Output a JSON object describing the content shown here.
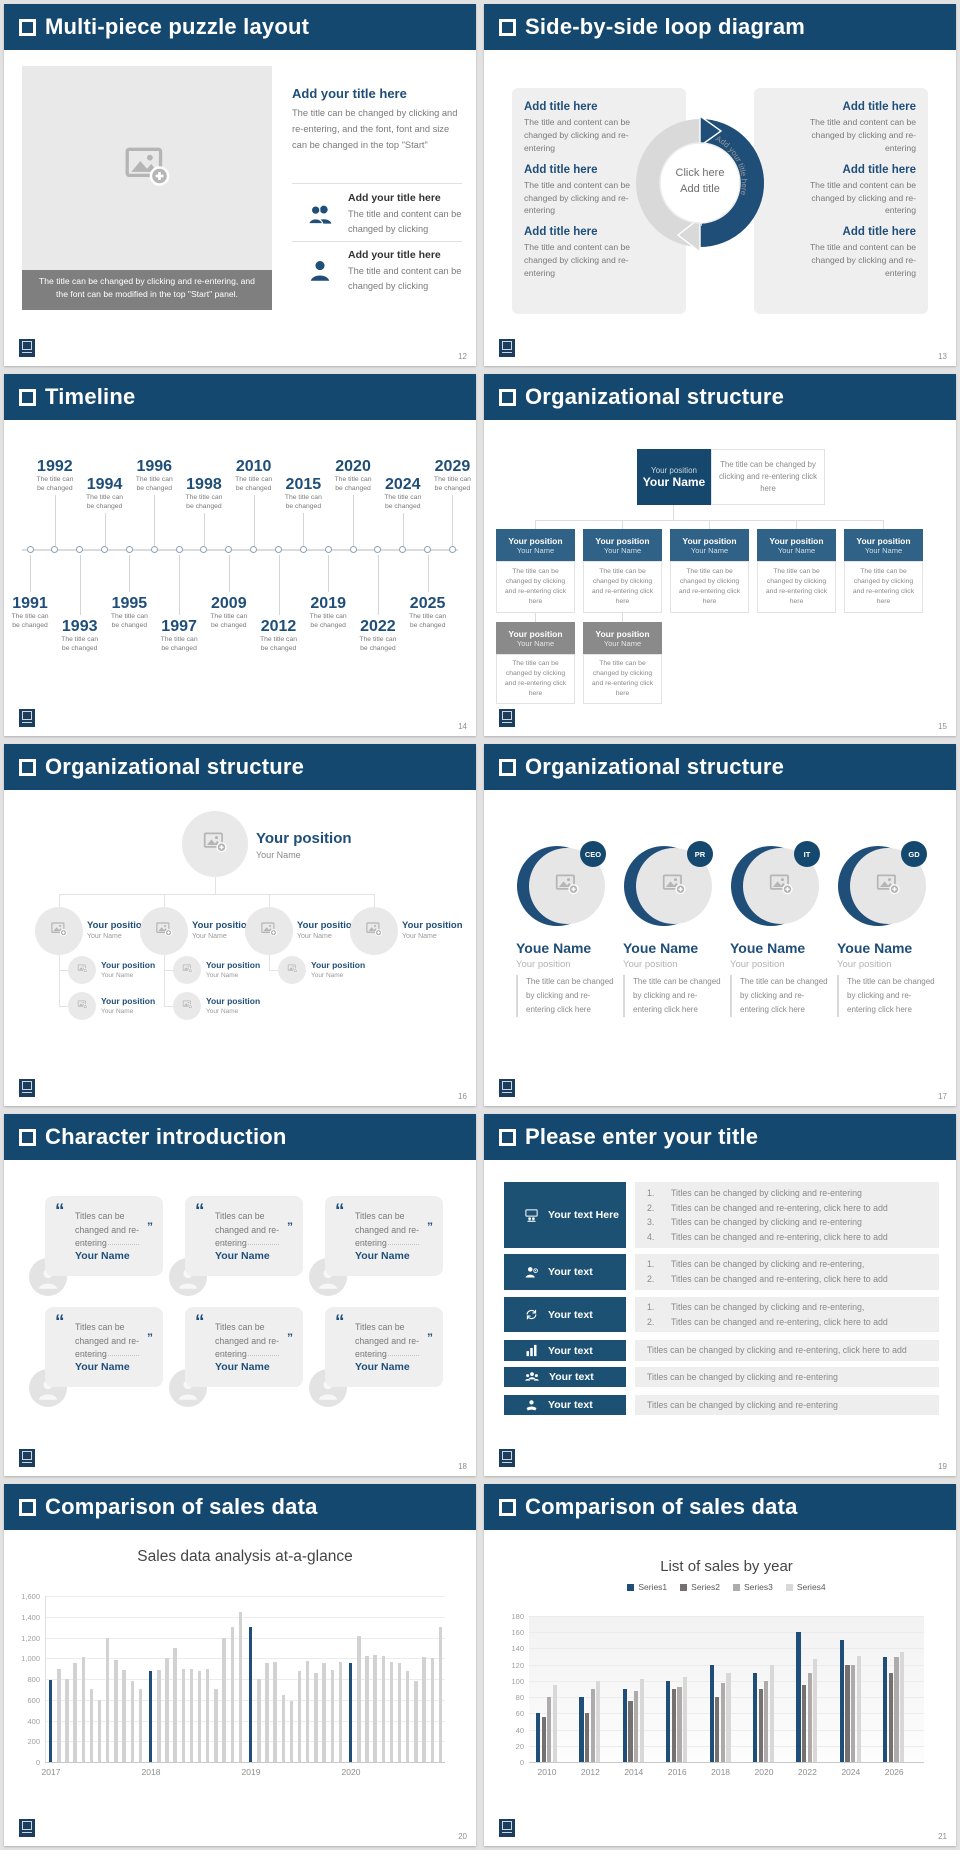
{
  "colors": {
    "header": "#15486F",
    "accent": "#1F4E79",
    "steel_box": "#2F6286",
    "gray_box": "#8A8A8A",
    "panel_gray": "#EFEFEF",
    "caption_bar": "#7F7F7F",
    "button_blue": "#1D5174",
    "bar_highlight": "#1F4E79",
    "bar_default": "#D2D2D2"
  },
  "slides": {
    "s12": {
      "title": "Multi-piece puzzle layout",
      "page": "12",
      "image_caption": "The title can be changed by clicking and re-entering, and the font can be modified in the top \"Start\" panel.",
      "heading": "Add your title here",
      "body": "The title can be changed by clicking and re-entering, and the font, font and size can be changed in the top \"Start\"",
      "items": [
        {
          "icon": "two-persons-icon",
          "title": "Add your title here",
          "text": "The title and content can be changed by clicking"
        },
        {
          "icon": "person-icon",
          "title": "Add your title here",
          "text": "The title and content can be changed by clicking"
        }
      ]
    },
    "s13": {
      "title": "Side-by-side loop diagram",
      "page": "13",
      "left_items": [
        {
          "title": "Add title here",
          "text": "The title and content can be changed by clicking and re-entering"
        },
        {
          "title": "Add title here",
          "text": "The title and content can be changed by clicking and re-entering"
        },
        {
          "title": "Add title here",
          "text": "The title and content can be changed by clicking and re-entering"
        }
      ],
      "right_items": [
        {
          "title": "Add title here",
          "text": "The title and content can be changed by clicking and re-entering"
        },
        {
          "title": "Add title here",
          "text": "The title and content can be changed by clicking and re-entering"
        },
        {
          "title": "Add title here",
          "text": "The title and content can be changed by clicking and re-entering"
        }
      ],
      "loop": {
        "left_arc_label": "Add your title here",
        "right_arc_label": "Add your title here",
        "center_line1": "Click here",
        "center_line2": "Add title"
      }
    },
    "s14": {
      "title": "Timeline",
      "page": "14",
      "caption_line1": "The title can",
      "caption_line2": "be changed",
      "points": [
        {
          "year": "1991",
          "side": "below",
          "tier": 1
        },
        {
          "year": "1992",
          "side": "above",
          "tier": 1
        },
        {
          "year": "1993",
          "side": "below",
          "tier": 2
        },
        {
          "year": "1994",
          "side": "above",
          "tier": 2
        },
        {
          "year": "1995",
          "side": "below",
          "tier": 1
        },
        {
          "year": "1996",
          "side": "above",
          "tier": 1
        },
        {
          "year": "1997",
          "side": "below",
          "tier": 2
        },
        {
          "year": "1998",
          "side": "above",
          "tier": 2
        },
        {
          "year": "2009",
          "side": "below",
          "tier": 1
        },
        {
          "year": "2010",
          "side": "above",
          "tier": 1
        },
        {
          "year": "2012",
          "side": "below",
          "tier": 2
        },
        {
          "year": "2015",
          "side": "above",
          "tier": 2
        },
        {
          "year": "2019",
          "side": "below",
          "tier": 1
        },
        {
          "year": "2020",
          "side": "above",
          "tier": 1
        },
        {
          "year": "2022",
          "side": "below",
          "tier": 2
        },
        {
          "year": "2024",
          "side": "above",
          "tier": 2
        },
        {
          "year": "2025",
          "side": "below",
          "tier": 1
        },
        {
          "year": "2029",
          "side": "above",
          "tier": 1
        }
      ]
    },
    "s15": {
      "title": "Organizational structure",
      "page": "15",
      "root": {
        "position": "Your position",
        "name": "Your Name",
        "note": "The title can be changed by clicking and re-entering click here"
      },
      "columns": [
        {
          "position": "Your position",
          "name": "Your Name",
          "note": "The title can be changed by clicking and re-entering click here"
        },
        {
          "position": "Your position",
          "name": "Your Name",
          "note": "The title can be changed by clicking and re-entering click here"
        },
        {
          "position": "Your position",
          "name": "Your Name",
          "note": "The title can be changed by clicking and re-entering click here"
        },
        {
          "position": "Your position",
          "name": "Your Name",
          "note": "The title can be changed by clicking and re-entering click here"
        },
        {
          "position": "Your position",
          "name": "Your Name",
          "note": "The title can be changed by clicking and re-entering click here"
        }
      ],
      "subs": [
        {
          "position": "Your position",
          "name": "Your Name",
          "note": "The title can be changed by clicking and re-entering click here"
        },
        {
          "position": "Your position",
          "name": "Your Name",
          "note": "The title can be changed by clicking and re-entering click here"
        }
      ]
    },
    "s16": {
      "title": "Organizational structure",
      "page": "16",
      "root": {
        "position": "Your position",
        "name": "Your Name"
      },
      "mid": [
        {
          "position": "Your position",
          "name": "Your Name"
        },
        {
          "position": "Your position",
          "name": "Your Name"
        },
        {
          "position": "Your position",
          "name": "Your Name"
        },
        {
          "position": "Your position",
          "name": "Your Name"
        }
      ],
      "subs": [
        {
          "col": 0,
          "row": 0,
          "position": "Your position",
          "name": "Your Name"
        },
        {
          "col": 0,
          "row": 1,
          "position": "Your position",
          "name": "Your Name"
        },
        {
          "col": 1,
          "row": 0,
          "position": "Your position",
          "name": "Your Name"
        },
        {
          "col": 1,
          "row": 1,
          "position": "Your position",
          "name": "Your Name"
        },
        {
          "col": 2,
          "row": 0,
          "position": "Your position",
          "name": "Your Name"
        }
      ]
    },
    "s17": {
      "title": "Organizational structure",
      "page": "17",
      "people": [
        {
          "badge": "CEO",
          "name": "Youe Name",
          "position": "Your position",
          "note": "The title can be changed by clicking and re-entering click here"
        },
        {
          "badge": "PR",
          "name": "Youe Name",
          "position": "Your position",
          "note": "The title can be changed by clicking and re-entering click here"
        },
        {
          "badge": "IT",
          "name": "Youe Name",
          "position": "Your position",
          "note": "The title can be changed by clicking and re-entering click here"
        },
        {
          "badge": "GD",
          "name": "Youe Name",
          "position": "Your position",
          "note": "The title can be changed by clicking and re-entering click here"
        }
      ]
    },
    "s18": {
      "title": "Character introduction",
      "page": "18",
      "cards": [
        {
          "quote": "Titles can be changed and re-entering",
          "name": "Your Name"
        },
        {
          "quote": "Titles can be changed and re-entering",
          "name": "Your Name"
        },
        {
          "quote": "Titles can be changed and re-entering",
          "name": "Your Name"
        },
        {
          "quote": "Titles can be changed and re-entering",
          "name": "Your Name"
        },
        {
          "quote": "Titles can be changed and re-entering",
          "name": "Your Name"
        },
        {
          "quote": "Titles can be changed and re-entering",
          "name": "Your Name"
        }
      ]
    },
    "s19": {
      "title": "Please enter your title",
      "page": "19",
      "rows": [
        {
          "icon": "presentation-people-icon",
          "button": "Your text Here",
          "numbered": true,
          "lines": [
            "Titles can be changed by clicking and re-entering",
            "Titles can be changed and re-entering, click here to add",
            "Titles can be changed by clicking and re-entering",
            "Titles can be changed and re-entering, click here to add"
          ]
        },
        {
          "icon": "person-gear-icon",
          "button": "Your text",
          "numbered": true,
          "lines": [
            "Titles can be changed by clicking and re-entering,",
            "Titles can be changed and re-entering, click here to add"
          ]
        },
        {
          "icon": "shield-sync-icon",
          "button": "Your text",
          "numbered": true,
          "lines": [
            "Titles can be changed by clicking and re-entering,",
            "Titles can be changed and re-entering, click here to add"
          ]
        },
        {
          "icon": "bar-chart-icon",
          "button": "Your text",
          "numbered": false,
          "lines": [
            "Titles can be changed by clicking and re-entering, click here to add"
          ]
        },
        {
          "icon": "people-group-icon",
          "button": "Your text",
          "numbered": false,
          "lines": [
            "Titles can be changed by clicking and re-entering"
          ]
        },
        {
          "icon": "hand-user-icon",
          "button": "Your text",
          "numbered": false,
          "lines": [
            "Titles can be changed by clicking and re-entering"
          ]
        }
      ]
    },
    "s20": {
      "title": "Comparison of sales data",
      "page": "20"
    },
    "s21": {
      "title": "Comparison of sales data",
      "page": "21"
    }
  },
  "chart_data": [
    {
      "type": "bar",
      "title": "Sales data analysis at-a-glance",
      "categories": [
        "2017",
        "2018",
        "2019",
        "2020"
      ],
      "groups": [
        {
          "label": "2017",
          "values": [
            790,
            900,
            800,
            950,
            1010,
            700,
            600,
            1200,
            980,
            890,
            780,
            700
          ]
        },
        {
          "label": "2018",
          "values": [
            880,
            890,
            1000,
            1100,
            900,
            900,
            880,
            900,
            700,
            1200,
            1300,
            1450
          ]
        },
        {
          "label": "2019",
          "values": [
            1300,
            800,
            950,
            960,
            650,
            590,
            880,
            970,
            860,
            950,
            890,
            960
          ]
        },
        {
          "label": "2020",
          "values": [
            950,
            1210,
            1020,
            1030,
            1020,
            960,
            950,
            880,
            780,
            1010,
            1000,
            1300
          ]
        }
      ],
      "highlight_first_bar": true,
      "bar_colors": {
        "highlight": "#1F4E79",
        "default": "#D2D2D2"
      },
      "ylim": [
        0,
        1600
      ],
      "ytick_step": 200,
      "ytick_labels": [
        "0",
        "200",
        "400",
        "600",
        "800",
        "1,000",
        "1,200",
        "1,400",
        "1,600"
      ],
      "grid": true,
      "legend": false,
      "xlabel": "",
      "ylabel": ""
    },
    {
      "type": "bar",
      "title": "List of sales by year",
      "categories": [
        "2010",
        "2012",
        "2014",
        "2016",
        "2018",
        "2020",
        "2022",
        "2024",
        "2026"
      ],
      "series": [
        {
          "name": "Series1",
          "color": "#1F4E79",
          "values": [
            60,
            80,
            90,
            100,
            120,
            110,
            160,
            150,
            130
          ]
        },
        {
          "name": "Series2",
          "color": "#767171",
          "values": [
            55,
            60,
            75,
            90,
            80,
            90,
            95,
            120,
            110
          ]
        },
        {
          "name": "Series3",
          "color": "#AFABAB",
          "values": [
            80,
            90,
            88,
            92,
            98,
            100,
            110,
            120,
            130
          ]
        },
        {
          "name": "Series4",
          "color": "#D8D8D8",
          "values": [
            95,
            100,
            102,
            105,
            110,
            120,
            127,
            131,
            136
          ]
        }
      ],
      "ylim": [
        0,
        180
      ],
      "ytick_step": 20,
      "ytick_labels": [
        "0",
        "20",
        "40",
        "60",
        "80",
        "100",
        "120",
        "140",
        "160",
        "180"
      ],
      "grid": true,
      "legend_position": "top",
      "xlabel": "",
      "ylabel": ""
    }
  ]
}
